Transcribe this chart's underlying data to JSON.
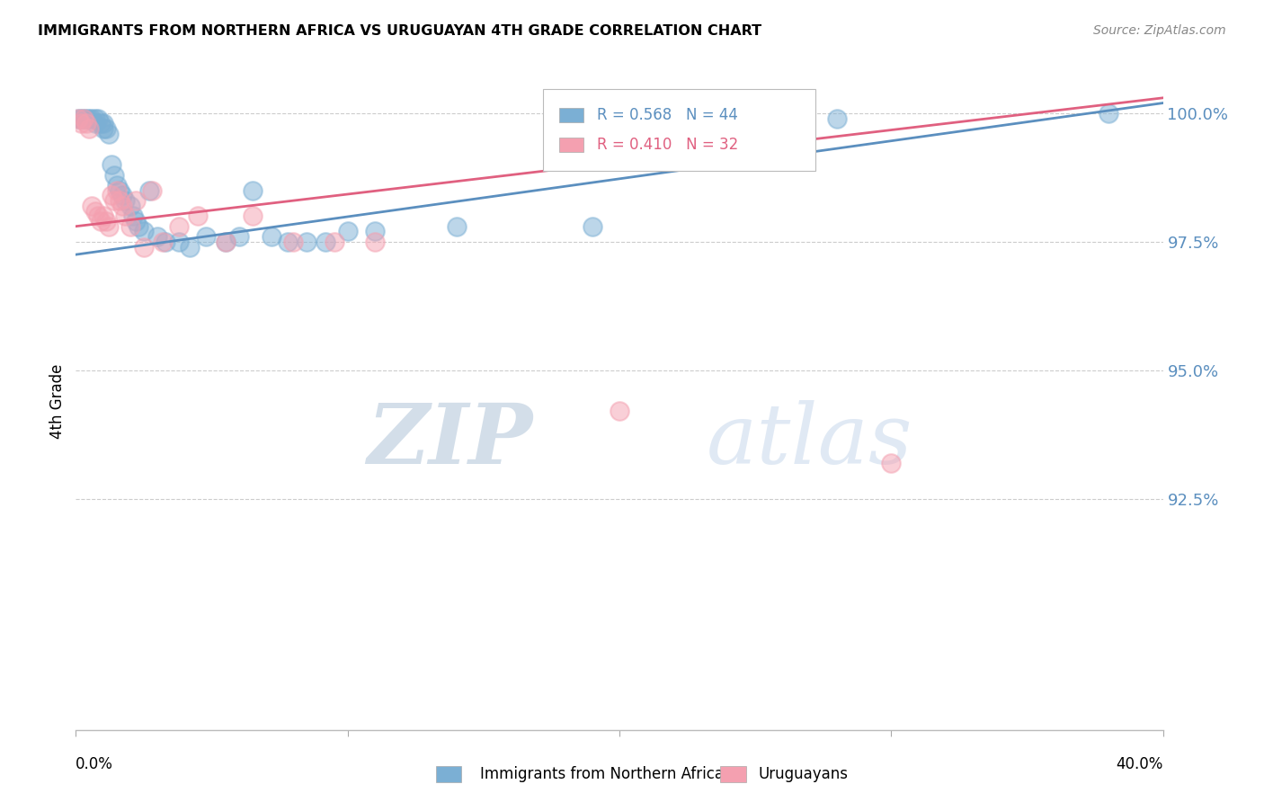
{
  "title": "IMMIGRANTS FROM NORTHERN AFRICA VS URUGUAYAN 4TH GRADE CORRELATION CHART",
  "source": "Source: ZipAtlas.com",
  "ylabel": "4th Grade",
  "ytick_labels": [
    "100.0%",
    "97.5%",
    "95.0%",
    "92.5%"
  ],
  "ytick_values": [
    1.0,
    0.975,
    0.95,
    0.925
  ],
  "xlim": [
    0.0,
    0.4
  ],
  "ylim": [
    0.88,
    1.008
  ],
  "legend_blue_label": "Immigrants from Northern Africa",
  "legend_pink_label": "Uruguayans",
  "legend_r_blue": "R = 0.568",
  "legend_n_blue": "N = 44",
  "legend_r_pink": "R = 0.410",
  "legend_n_pink": "N = 32",
  "blue_scatter_x": [
    0.001,
    0.002,
    0.003,
    0.004,
    0.005,
    0.006,
    0.007,
    0.007,
    0.008,
    0.009,
    0.01,
    0.01,
    0.011,
    0.012,
    0.013,
    0.014,
    0.015,
    0.016,
    0.017,
    0.018,
    0.02,
    0.021,
    0.022,
    0.023,
    0.025,
    0.027,
    0.03,
    0.033,
    0.038,
    0.042,
    0.048,
    0.055,
    0.06,
    0.065,
    0.072,
    0.078,
    0.085,
    0.092,
    0.1,
    0.11,
    0.14,
    0.19,
    0.28,
    0.38
  ],
  "blue_scatter_y": [
    0.999,
    0.999,
    0.999,
    0.999,
    0.999,
    0.999,
    0.999,
    0.998,
    0.999,
    0.998,
    0.998,
    0.997,
    0.997,
    0.996,
    0.99,
    0.988,
    0.986,
    0.985,
    0.984,
    0.983,
    0.982,
    0.98,
    0.979,
    0.978,
    0.977,
    0.985,
    0.976,
    0.975,
    0.975,
    0.974,
    0.976,
    0.975,
    0.976,
    0.985,
    0.976,
    0.975,
    0.975,
    0.975,
    0.977,
    0.977,
    0.978,
    0.978,
    0.999,
    1.0
  ],
  "pink_scatter_x": [
    0.001,
    0.002,
    0.003,
    0.004,
    0.005,
    0.006,
    0.007,
    0.008,
    0.009,
    0.01,
    0.011,
    0.012,
    0.013,
    0.014,
    0.015,
    0.016,
    0.017,
    0.018,
    0.02,
    0.022,
    0.025,
    0.028,
    0.032,
    0.038,
    0.045,
    0.055,
    0.065,
    0.08,
    0.095,
    0.11,
    0.2,
    0.3
  ],
  "pink_scatter_y": [
    0.999,
    0.998,
    0.999,
    0.998,
    0.997,
    0.982,
    0.981,
    0.98,
    0.979,
    0.98,
    0.979,
    0.978,
    0.984,
    0.983,
    0.985,
    0.983,
    0.982,
    0.98,
    0.978,
    0.983,
    0.974,
    0.985,
    0.975,
    0.978,
    0.98,
    0.975,
    0.98,
    0.975,
    0.975,
    0.975,
    0.942,
    0.932
  ],
  "blue_line_x": [
    0.0,
    0.4
  ],
  "blue_line_y": [
    0.9725,
    1.002
  ],
  "pink_line_x": [
    0.0,
    0.4
  ],
  "pink_line_y": [
    0.978,
    1.003
  ],
  "blue_color": "#7BAFD4",
  "pink_color": "#F4A0B0",
  "blue_line_color": "#5B8FBF",
  "pink_line_color": "#E06080",
  "watermark_zip": "ZIP",
  "watermark_atlas": "atlas",
  "background_color": "#ffffff",
  "grid_color": "#cccccc"
}
